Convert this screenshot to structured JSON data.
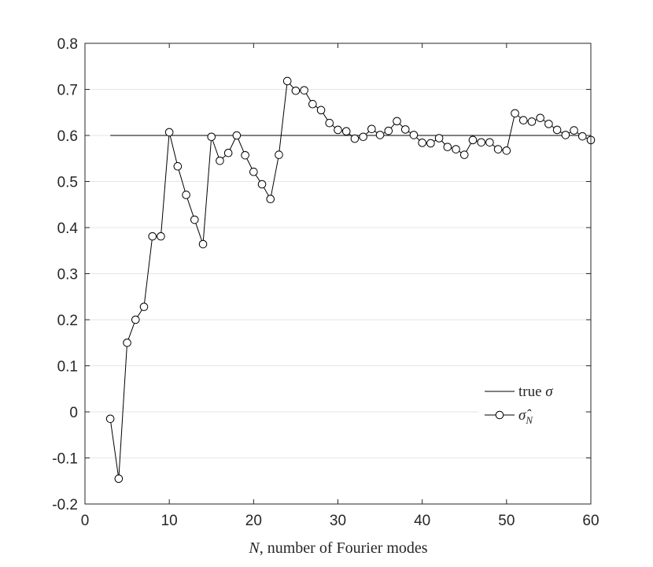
{
  "chart_data": {
    "type": "line",
    "xlabel_var": "N",
    "xlabel_rest": ", number of Fourier modes",
    "ylabel": "",
    "title": "",
    "xlim": [
      0,
      60
    ],
    "ylim": [
      -0.2,
      0.8
    ],
    "xticks": [
      0,
      10,
      20,
      30,
      40,
      50,
      60
    ],
    "yticks": [
      -0.2,
      -0.1,
      0,
      0.1,
      0.2,
      0.3,
      0.4,
      0.5,
      0.6,
      0.7,
      0.8
    ],
    "ytick_labels": [
      "-0.2",
      "-0.1",
      "0",
      "0.1",
      "0.2",
      "0.3",
      "0.4",
      "0.5",
      "0.6",
      "0.7",
      "0.8"
    ],
    "grid": "horizontal",
    "legend_position": "bottom-right",
    "series": [
      {
        "name": "true σ",
        "legend_text": "true ",
        "legend_symbol": "σ",
        "style": "line",
        "color": "#000000",
        "x": [
          3,
          60
        ],
        "y": [
          0.6,
          0.6
        ]
      },
      {
        "name": "σ̂_N",
        "legend_symbol": "σ̂",
        "legend_subscript": "N",
        "style": "line-circle",
        "color": "#000000",
        "x": [
          3,
          4,
          5,
          6,
          7,
          8,
          9,
          10,
          11,
          12,
          13,
          14,
          15,
          16,
          17,
          18,
          19,
          20,
          21,
          22,
          23,
          24,
          25,
          26,
          27,
          28,
          29,
          30,
          31,
          32,
          33,
          34,
          35,
          36,
          37,
          38,
          39,
          40,
          41,
          42,
          43,
          44,
          45,
          46,
          47,
          48,
          49,
          50,
          51,
          52,
          53,
          54,
          55,
          56,
          57,
          58,
          59,
          60
        ],
        "y": [
          -0.015,
          -0.145,
          0.15,
          0.2,
          0.228,
          0.381,
          0.381,
          0.607,
          0.533,
          0.471,
          0.417,
          0.364,
          0.597,
          0.545,
          0.562,
          0.6,
          0.557,
          0.521,
          0.494,
          0.462,
          0.558,
          0.718,
          0.697,
          0.698,
          0.668,
          0.655,
          0.627,
          0.612,
          0.609,
          0.593,
          0.597,
          0.614,
          0.601,
          0.61,
          0.631,
          0.613,
          0.601,
          0.584,
          0.583,
          0.594,
          0.575,
          0.57,
          0.558,
          0.59,
          0.585,
          0.585,
          0.57,
          0.567,
          0.648,
          0.633,
          0.63,
          0.638,
          0.625,
          0.612,
          0.601,
          0.611,
          0.598,
          0.59
        ]
      }
    ]
  }
}
